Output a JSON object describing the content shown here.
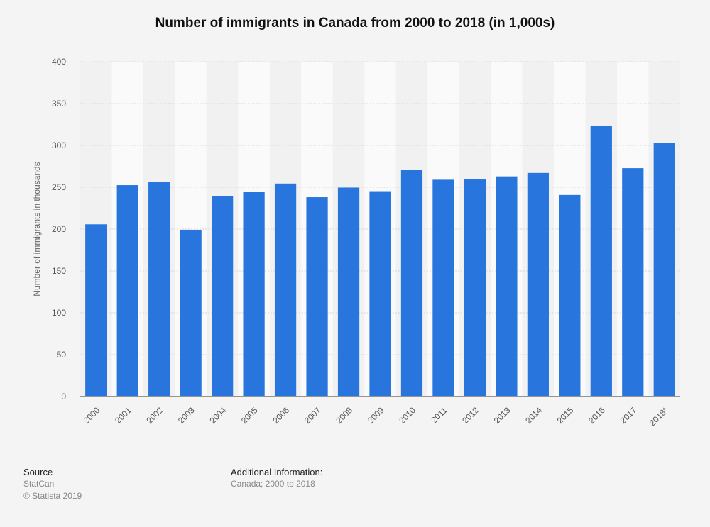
{
  "chart_data": {
    "type": "bar",
    "title": "Number of immigrants in Canada from 2000 to 2018 (in 1,000s)",
    "xlabel": "",
    "ylabel": "Number of immigrants in thousands",
    "categories": [
      "2000",
      "2001",
      "2002",
      "2003",
      "2004",
      "2005",
      "2006",
      "2007",
      "2008",
      "2009",
      "2010",
      "2011",
      "2012",
      "2013",
      "2014",
      "2015",
      "2016",
      "2017",
      "2018*"
    ],
    "values": [
      205.7,
      252.5,
      256.4,
      199.2,
      239.1,
      244.6,
      254.4,
      238.1,
      249.6,
      245.3,
      270.6,
      259.0,
      259.3,
      263.0,
      267.1,
      240.8,
      323.2,
      272.8,
      303.3
    ],
    "ylim": [
      0,
      400
    ],
    "yticks": [
      0,
      50,
      100,
      150,
      200,
      250,
      300,
      350,
      400
    ],
    "grid": true,
    "bar_color": "#2876dd"
  },
  "footer": {
    "source_heading": "Source",
    "source_name": "StatCan",
    "copyright": "© Statista 2019",
    "additional_heading": "Additional Information:",
    "additional_text": "Canada; 2000 to 2018"
  }
}
